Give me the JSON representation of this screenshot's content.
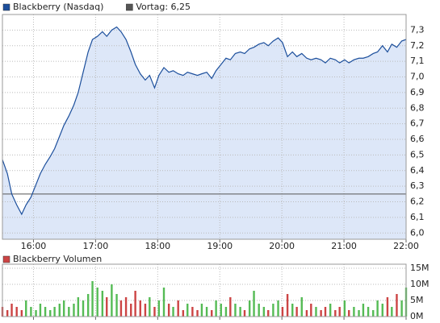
{
  "chart_data": [
    {
      "type": "area",
      "series": [
        {
          "name": "Blackberry (Nasdaq)",
          "color": "#1c4f9c",
          "fill": "#dde7f8",
          "values": [
            6.47,
            6.38,
            6.25,
            6.18,
            6.12,
            6.18,
            6.23,
            6.31,
            6.38,
            6.44,
            6.49,
            6.54,
            6.62,
            6.69,
            6.75,
            6.82,
            6.9,
            7.03,
            7.16,
            7.24,
            7.26,
            7.29,
            7.26,
            7.3,
            7.32,
            7.29,
            7.24,
            7.16,
            7.08,
            7.02,
            6.98,
            7.01,
            6.93,
            7.01,
            7.06,
            7.03,
            7.04,
            7.02,
            7.01,
            7.03,
            7.02,
            7.01,
            7.02,
            7.03,
            6.99,
            7.04,
            7.08,
            7.12,
            7.11,
            7.15,
            7.16,
            7.15,
            7.18,
            7.19,
            7.21,
            7.22,
            7.2,
            7.23,
            7.25,
            7.22,
            7.13,
            7.16,
            7.13,
            7.15,
            7.12,
            7.11,
            7.12,
            7.11,
            7.09,
            7.12,
            7.11,
            7.09,
            7.11,
            7.09,
            7.11,
            7.12,
            7.12,
            7.13,
            7.15,
            7.16,
            7.2,
            7.16,
            7.21,
            7.19,
            7.23,
            7.24
          ]
        }
      ],
      "x": [
        15.5,
        15.58,
        15.65,
        15.73,
        15.81,
        15.88,
        15.96,
        16.04,
        16.11,
        16.19,
        16.27,
        16.34,
        16.42,
        16.49,
        16.57,
        16.65,
        16.72,
        16.8,
        16.88,
        16.95,
        17.03,
        17.11,
        17.18,
        17.26,
        17.34,
        17.41,
        17.49,
        17.57,
        17.64,
        17.72,
        17.8,
        17.87,
        17.95,
        18.02,
        18.1,
        18.18,
        18.25,
        18.33,
        18.41,
        18.48,
        18.56,
        18.64,
        18.71,
        18.79,
        18.87,
        18.94,
        19.02,
        19.1,
        19.17,
        19.25,
        19.33,
        19.4,
        19.48,
        19.55,
        19.63,
        19.71,
        19.78,
        19.86,
        19.94,
        20.01,
        20.09,
        20.17,
        20.24,
        20.32,
        20.4,
        20.47,
        20.55,
        20.63,
        20.7,
        20.78,
        20.86,
        20.93,
        21.01,
        21.08,
        21.16,
        21.24,
        21.31,
        21.39,
        21.47,
        21.54,
        21.62,
        21.7,
        21.77,
        21.85,
        21.93,
        22.0
      ],
      "reference_line": {
        "name": "Vortag: 6,25",
        "value": 6.25,
        "color": "#555555"
      },
      "xlim": [
        15.5,
        22.0
      ],
      "xticks": [
        {
          "value": 16,
          "label": "16:00"
        },
        {
          "value": 17,
          "label": "17:00"
        },
        {
          "value": 18,
          "label": "18:00"
        },
        {
          "value": 19,
          "label": "19:00"
        },
        {
          "value": 20,
          "label": "20:00"
        },
        {
          "value": 21,
          "label": "21:00"
        },
        {
          "value": 22,
          "label": "22:00"
        }
      ],
      "ylim": [
        5.96,
        7.4
      ],
      "yticks": [
        {
          "value": 6.0,
          "label": "6,0"
        },
        {
          "value": 6.1,
          "label": "6,1"
        },
        {
          "value": 6.2,
          "label": "6,2"
        },
        {
          "value": 6.3,
          "label": "6,3"
        },
        {
          "value": 6.4,
          "label": "6,4"
        },
        {
          "value": 6.5,
          "label": "6,5"
        },
        {
          "value": 6.6,
          "label": "6,6"
        },
        {
          "value": 6.7,
          "label": "6,7"
        },
        {
          "value": 6.8,
          "label": "6,8"
        },
        {
          "value": 6.9,
          "label": "6,9"
        },
        {
          "value": 7.0,
          "label": "7,0"
        },
        {
          "value": 7.1,
          "label": "7,1"
        },
        {
          "value": 7.2,
          "label": "7,2"
        },
        {
          "value": 7.3,
          "label": "7,3"
        }
      ],
      "grid": true
    },
    {
      "type": "bar",
      "series": [
        {
          "name": "Blackberry Volumen",
          "color": "#cc4444",
          "up_color": "#55bb55",
          "values": [
            3,
            2,
            4,
            3,
            2,
            5,
            3,
            2,
            4,
            3,
            2,
            3,
            4,
            5,
            3,
            4,
            6,
            5,
            7,
            11,
            9,
            8,
            6,
            10,
            7,
            5,
            6,
            4,
            8,
            5,
            4,
            6,
            3,
            5,
            9,
            4,
            3,
            5,
            2,
            4,
            3,
            2,
            4,
            3,
            2,
            5,
            4,
            3,
            6,
            4,
            3,
            2,
            5,
            8,
            4,
            3,
            2,
            4,
            5,
            3,
            7,
            4,
            3,
            6,
            2,
            4,
            3,
            2,
            3,
            4,
            2,
            3,
            5,
            2,
            3,
            2,
            4,
            3,
            2,
            5,
            4,
            6,
            3,
            7,
            5,
            9
          ]
        }
      ],
      "x": [
        15.5,
        15.58,
        15.65,
        15.73,
        15.81,
        15.88,
        15.96,
        16.04,
        16.11,
        16.19,
        16.27,
        16.34,
        16.42,
        16.49,
        16.57,
        16.65,
        16.72,
        16.8,
        16.88,
        16.95,
        17.03,
        17.11,
        17.18,
        17.26,
        17.34,
        17.41,
        17.49,
        17.57,
        17.64,
        17.72,
        17.8,
        17.87,
        17.95,
        18.02,
        18.1,
        18.18,
        18.25,
        18.33,
        18.41,
        18.48,
        18.56,
        18.64,
        18.71,
        18.79,
        18.87,
        18.94,
        19.02,
        19.1,
        19.17,
        19.25,
        19.33,
        19.4,
        19.48,
        19.55,
        19.63,
        19.71,
        19.78,
        19.86,
        19.94,
        20.01,
        20.09,
        20.17,
        20.24,
        20.32,
        20.4,
        20.47,
        20.55,
        20.63,
        20.7,
        20.78,
        20.86,
        20.93,
        21.01,
        21.08,
        21.16,
        21.24,
        21.31,
        21.39,
        21.47,
        21.54,
        21.62,
        21.7,
        21.77,
        21.85,
        21.93,
        22.0
      ],
      "xlim": [
        15.5,
        22.0
      ],
      "xticks": [
        16,
        17,
        18,
        19,
        20,
        21,
        22
      ],
      "ylim": [
        0,
        16.25
      ],
      "yticks": [
        {
          "value": 0,
          "label": "0M"
        },
        {
          "value": 5,
          "label": "5M"
        },
        {
          "value": 10,
          "label": "10M"
        },
        {
          "value": 15,
          "label": "15M"
        }
      ],
      "grid": true
    }
  ]
}
